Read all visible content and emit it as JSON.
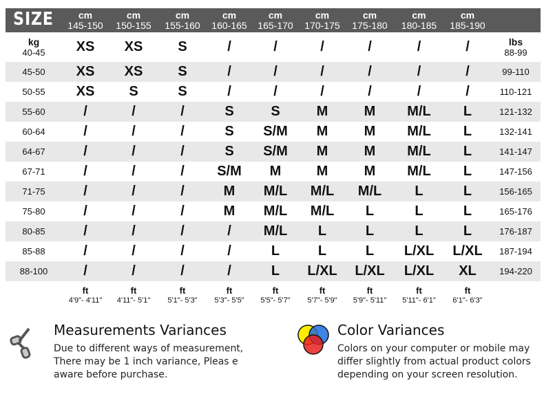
{
  "header": {
    "title": "SIZE",
    "unit": "cm",
    "heights": [
      "145-150",
      "150-155",
      "155-160",
      "160-165",
      "165-170",
      "170-175",
      "175-180",
      "180-185",
      "185-190"
    ]
  },
  "weight_unit_kg": "kg",
  "weight_unit_lbs": "lbs",
  "rows": [
    {
      "kg": "40-45",
      "sizes": [
        "XS",
        "XS",
        "S",
        "/",
        "/",
        "/",
        "/",
        "/",
        "/"
      ],
      "lbs": "88-99"
    },
    {
      "kg": "45-50",
      "sizes": [
        "XS",
        "XS",
        "S",
        "/",
        "/",
        "/",
        "/",
        "/",
        "/"
      ],
      "lbs": "99-110"
    },
    {
      "kg": "50-55",
      "sizes": [
        "XS",
        "S",
        "S",
        "/",
        "/",
        "/",
        "/",
        "/",
        "/"
      ],
      "lbs": "110-121"
    },
    {
      "kg": "55-60",
      "sizes": [
        "/",
        "/",
        "/",
        "S",
        "S",
        "M",
        "M",
        "M/L",
        "L"
      ],
      "lbs": "121-132"
    },
    {
      "kg": "60-64",
      "sizes": [
        "/",
        "/",
        "/",
        "S",
        "S/M",
        "M",
        "M",
        "M/L",
        "L"
      ],
      "lbs": "132-141"
    },
    {
      "kg": "64-67",
      "sizes": [
        "/",
        "/",
        "/",
        "S",
        "S/M",
        "M",
        "M",
        "M/L",
        "L"
      ],
      "lbs": "141-147"
    },
    {
      "kg": "67-71",
      "sizes": [
        "/",
        "/",
        "/",
        "S/M",
        "M",
        "M",
        "M",
        "M/L",
        "L"
      ],
      "lbs": "147-156"
    },
    {
      "kg": "71-75",
      "sizes": [
        "/",
        "/",
        "/",
        "M",
        "M/L",
        "M/L",
        "M/L",
        "L",
        "L"
      ],
      "lbs": "156-165"
    },
    {
      "kg": "75-80",
      "sizes": [
        "/",
        "/",
        "/",
        "M",
        "M/L",
        "M/L",
        "L",
        "L",
        "L"
      ],
      "lbs": "165-176"
    },
    {
      "kg": "80-85",
      "sizes": [
        "/",
        "/",
        "/",
        "/",
        "M/L",
        "L",
        "L",
        "L",
        "L"
      ],
      "lbs": "176-187"
    },
    {
      "kg": "85-88",
      "sizes": [
        "/",
        "/",
        "/",
        "/",
        "L",
        "L",
        "L",
        "L/XL",
        "L/XL"
      ],
      "lbs": "187-194"
    },
    {
      "kg": "88-100",
      "sizes": [
        "/",
        "/",
        "/",
        "/",
        "L",
        "L/XL",
        "L/XL",
        "L/XL",
        "XL"
      ],
      "lbs": "194-220"
    }
  ],
  "feet": {
    "unit": "ft",
    "values": [
      "4'9\"- 4'11\"",
      "4'11\"- 5'1\"",
      "5'1\"- 5'3\"",
      "5'3\"- 5'5\"",
      "5'5\"- 5'7\"",
      "5'7\"- 5'9\"",
      "5'9\"- 5'11\"",
      "5'11\"- 6'1\"",
      "6'1\"- 6'3\""
    ]
  },
  "notes": {
    "measurement": {
      "title": "Measurements Variances",
      "lines": [
        "Due to different ways of measurement,",
        "There may be 1 inch variance, Pleas e",
        "aware before purchase."
      ],
      "icon": "scissors-icon"
    },
    "color": {
      "title": "Color Variances",
      "lines": [
        "Colors on your computer or mobile may",
        "differ slightly from actual product colors",
        "depending on your screen resolution."
      ],
      "icon": "color-circles-icon"
    }
  },
  "colors": {
    "header_bg": "#5a5a5a",
    "stripe": "#e8e8e8"
  }
}
